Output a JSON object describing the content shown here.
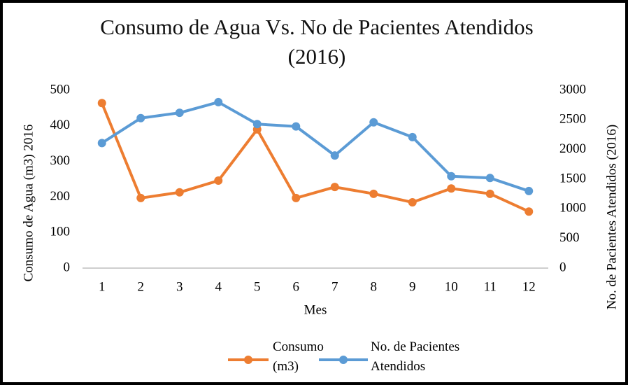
{
  "chart_data": {
    "type": "line",
    "title": "Consumo de Agua Vs. No de Pacientes Atendidos (2016)",
    "xlabel": "Mes",
    "ylabel": "Consumo de Agua (m3) 2016",
    "y2label": "No. de Pacientes Atendidos (2016)",
    "categories": [
      "1",
      "2",
      "3",
      "4",
      "5",
      "6",
      "7",
      "8",
      "9",
      "10",
      "11",
      "12"
    ],
    "series": [
      {
        "name": "Consumo (m3)",
        "color": "#ED7D31",
        "values": [
          464,
          197,
          213,
          246,
          390,
          197,
          228,
          209,
          185,
          224,
          209,
          159
        ]
      },
      {
        "name": "No. de Pacientes Atendidos",
        "color": "#5B9BD5",
        "axis": "y2",
        "values": [
          2110,
          2530,
          2620,
          2800,
          2430,
          2390,
          1900,
          2460,
          2210,
          1550,
          1520,
          1300
        ]
      }
    ],
    "ylim": [
      0,
      500
    ],
    "yticks": [
      0,
      100,
      200,
      300,
      400,
      500
    ],
    "y2lim": [
      0,
      3000
    ],
    "y2ticks": [
      0,
      500,
      1000,
      1500,
      2000,
      2500,
      3000
    ],
    "grid": false,
    "legend": "bottom"
  }
}
